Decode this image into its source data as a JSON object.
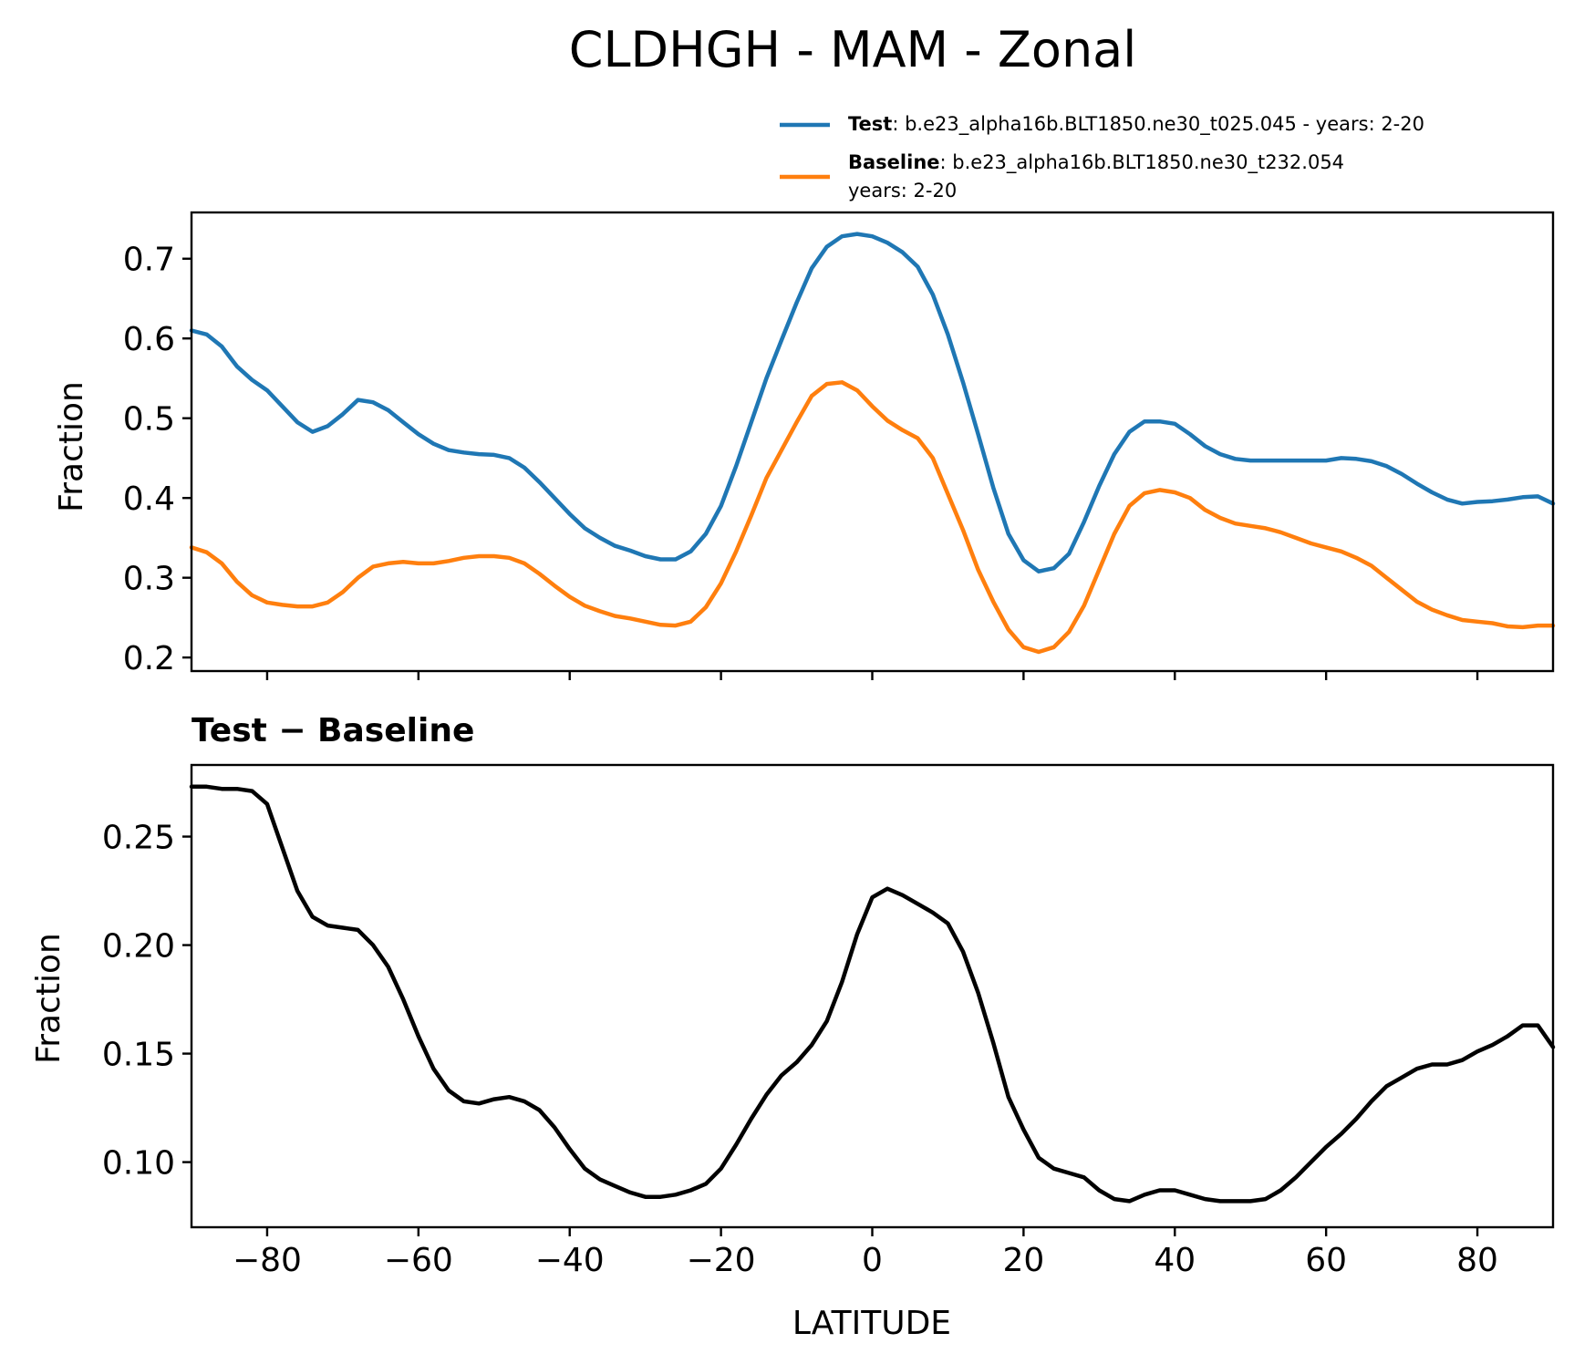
{
  "chart_data": [
    {
      "type": "line",
      "title": "CLDHGH - MAM - Zonal",
      "xlabel": "",
      "ylabel": "Fraction",
      "xlim": [
        -90,
        90
      ],
      "ylim": [
        0.183,
        0.758
      ],
      "xticks": [
        -80,
        -60,
        -40,
        -20,
        0,
        20,
        40,
        60,
        80
      ],
      "xtick_labels_visible": false,
      "yticks": [
        0.2,
        0.3,
        0.4,
        0.5,
        0.6,
        0.7
      ],
      "ytick_labels": [
        "0.2",
        "0.3",
        "0.4",
        "0.5",
        "0.6",
        "0.7"
      ],
      "grid": false,
      "legend": {
        "placement": "above-top-right",
        "entries": [
          {
            "bold": "Test",
            "text": ": b.e23_alpha16b.BLT1850.ne30_t025.045 - years: 2-20",
            "text2": ""
          },
          {
            "bold": "Baseline",
            "text": ": b.e23_alpha16b.BLT1850.ne30_t232.054",
            "text2": "years: 2-20"
          }
        ]
      },
      "series": [
        {
          "name": "Test",
          "color": "#1f77b4",
          "x": [
            -90,
            -88,
            -86,
            -84,
            -82,
            -80,
            -78,
            -76,
            -74,
            -72,
            -70,
            -68,
            -66,
            -64,
            -62,
            -60,
            -58,
            -56,
            -54,
            -52,
            -50,
            -48,
            -46,
            -44,
            -42,
            -40,
            -38,
            -36,
            -34,
            -32,
            -30,
            -28,
            -26,
            -24,
            -22,
            -20,
            -18,
            -16,
            -14,
            -12,
            -10,
            -8,
            -6,
            -4,
            -2,
            0,
            2,
            4,
            6,
            8,
            10,
            12,
            14,
            16,
            18,
            20,
            22,
            24,
            26,
            28,
            30,
            32,
            34,
            36,
            38,
            40,
            42,
            44,
            46,
            48,
            50,
            52,
            54,
            56,
            58,
            60,
            62,
            64,
            66,
            68,
            70,
            72,
            74,
            76,
            78,
            80,
            82,
            84,
            86,
            88,
            90
          ],
          "values": [
            0.61,
            0.605,
            0.59,
            0.565,
            0.548,
            0.535,
            0.515,
            0.495,
            0.483,
            0.49,
            0.505,
            0.523,
            0.52,
            0.51,
            0.495,
            0.48,
            0.468,
            0.46,
            0.457,
            0.455,
            0.454,
            0.45,
            0.438,
            0.42,
            0.4,
            0.38,
            0.362,
            0.35,
            0.34,
            0.334,
            0.327,
            0.323,
            0.323,
            0.333,
            0.355,
            0.39,
            0.44,
            0.495,
            0.55,
            0.598,
            0.645,
            0.688,
            0.715,
            0.728,
            0.731,
            0.728,
            0.72,
            0.708,
            0.69,
            0.655,
            0.605,
            0.545,
            0.48,
            0.413,
            0.355,
            0.322,
            0.308,
            0.312,
            0.33,
            0.37,
            0.415,
            0.455,
            0.483,
            0.496,
            0.496,
            0.493,
            0.48,
            0.465,
            0.455,
            0.449,
            0.447,
            0.447,
            0.447,
            0.447,
            0.447,
            0.447,
            0.45,
            0.449,
            0.446,
            0.44,
            0.43,
            0.418,
            0.407,
            0.398,
            0.393,
            0.395,
            0.396,
            0.398,
            0.401,
            0.402,
            0.393
          ]
        },
        {
          "name": "Baseline",
          "color": "#ff7f0e",
          "x": [
            -90,
            -88,
            -86,
            -84,
            -82,
            -80,
            -78,
            -76,
            -74,
            -72,
            -70,
            -68,
            -66,
            -64,
            -62,
            -60,
            -58,
            -56,
            -54,
            -52,
            -50,
            -48,
            -46,
            -44,
            -42,
            -40,
            -38,
            -36,
            -34,
            -32,
            -30,
            -28,
            -26,
            -24,
            -22,
            -20,
            -18,
            -16,
            -14,
            -12,
            -10,
            -8,
            -6,
            -4,
            -2,
            0,
            2,
            4,
            6,
            8,
            10,
            12,
            14,
            16,
            18,
            20,
            22,
            24,
            26,
            28,
            30,
            32,
            34,
            36,
            38,
            40,
            42,
            44,
            46,
            48,
            50,
            52,
            54,
            56,
            58,
            60,
            62,
            64,
            66,
            68,
            70,
            72,
            74,
            76,
            78,
            80,
            82,
            84,
            86,
            88,
            90
          ],
          "values": [
            0.338,
            0.332,
            0.318,
            0.295,
            0.278,
            0.269,
            0.266,
            0.264,
            0.264,
            0.269,
            0.282,
            0.3,
            0.314,
            0.318,
            0.32,
            0.318,
            0.318,
            0.321,
            0.325,
            0.327,
            0.327,
            0.325,
            0.318,
            0.305,
            0.29,
            0.276,
            0.265,
            0.258,
            0.252,
            0.249,
            0.245,
            0.241,
            0.24,
            0.245,
            0.263,
            0.293,
            0.333,
            0.378,
            0.425,
            0.46,
            0.495,
            0.528,
            0.543,
            0.545,
            0.535,
            0.515,
            0.497,
            0.485,
            0.475,
            0.45,
            0.405,
            0.36,
            0.31,
            0.27,
            0.235,
            0.213,
            0.207,
            0.213,
            0.232,
            0.265,
            0.31,
            0.355,
            0.39,
            0.406,
            0.41,
            0.407,
            0.4,
            0.385,
            0.375,
            0.368,
            0.365,
            0.362,
            0.357,
            0.35,
            0.343,
            0.338,
            0.333,
            0.325,
            0.315,
            0.3,
            0.285,
            0.27,
            0.26,
            0.253,
            0.247,
            0.245,
            0.243,
            0.239,
            0.238,
            0.24,
            0.24
          ]
        }
      ]
    },
    {
      "type": "line",
      "title": "Test − Baseline",
      "xlabel": "LATITUDE",
      "ylabel": "Fraction",
      "xlim": [
        -90,
        90
      ],
      "ylim": [
        0.07,
        0.283
      ],
      "xticks": [
        -80,
        -60,
        -40,
        -20,
        0,
        20,
        40,
        60,
        80
      ],
      "xtick_labels": [
        "−80",
        "−60",
        "−40",
        "−20",
        "0",
        "20",
        "40",
        "60",
        "80"
      ],
      "yticks": [
        0.1,
        0.15,
        0.2,
        0.25
      ],
      "ytick_labels": [
        "0.10",
        "0.15",
        "0.20",
        "0.25"
      ],
      "grid": false,
      "series": [
        {
          "name": "Test − Baseline",
          "color": "#000000",
          "x": [
            -90,
            -88,
            -86,
            -84,
            -82,
            -80,
            -78,
            -76,
            -74,
            -72,
            -70,
            -68,
            -66,
            -64,
            -62,
            -60,
            -58,
            -56,
            -54,
            -52,
            -50,
            -48,
            -46,
            -44,
            -42,
            -40,
            -38,
            -36,
            -34,
            -32,
            -30,
            -28,
            -26,
            -24,
            -22,
            -20,
            -18,
            -16,
            -14,
            -12,
            -10,
            -8,
            -6,
            -4,
            -2,
            0,
            2,
            4,
            6,
            8,
            10,
            12,
            14,
            16,
            18,
            20,
            22,
            24,
            26,
            28,
            30,
            32,
            34,
            36,
            38,
            40,
            42,
            44,
            46,
            48,
            50,
            52,
            54,
            56,
            58,
            60,
            62,
            64,
            66,
            68,
            70,
            72,
            74,
            76,
            78,
            80,
            82,
            84,
            86,
            88,
            90
          ],
          "values": [
            0.273,
            0.273,
            0.272,
            0.272,
            0.271,
            0.265,
            0.245,
            0.225,
            0.213,
            0.209,
            0.208,
            0.207,
            0.2,
            0.19,
            0.175,
            0.158,
            0.143,
            0.133,
            0.128,
            0.127,
            0.129,
            0.13,
            0.128,
            0.124,
            0.116,
            0.106,
            0.097,
            0.092,
            0.089,
            0.086,
            0.084,
            0.084,
            0.085,
            0.087,
            0.09,
            0.097,
            0.108,
            0.12,
            0.131,
            0.14,
            0.146,
            0.154,
            0.165,
            0.183,
            0.205,
            0.222,
            0.226,
            0.223,
            0.219,
            0.215,
            0.21,
            0.197,
            0.178,
            0.155,
            0.13,
            0.115,
            0.102,
            0.097,
            0.095,
            0.093,
            0.087,
            0.083,
            0.082,
            0.085,
            0.087,
            0.087,
            0.085,
            0.083,
            0.082,
            0.082,
            0.082,
            0.083,
            0.087,
            0.093,
            0.1,
            0.107,
            0.113,
            0.12,
            0.128,
            0.135,
            0.139,
            0.143,
            0.145,
            0.145,
            0.147,
            0.151,
            0.154,
            0.158,
            0.163,
            0.163,
            0.153
          ]
        }
      ]
    }
  ]
}
